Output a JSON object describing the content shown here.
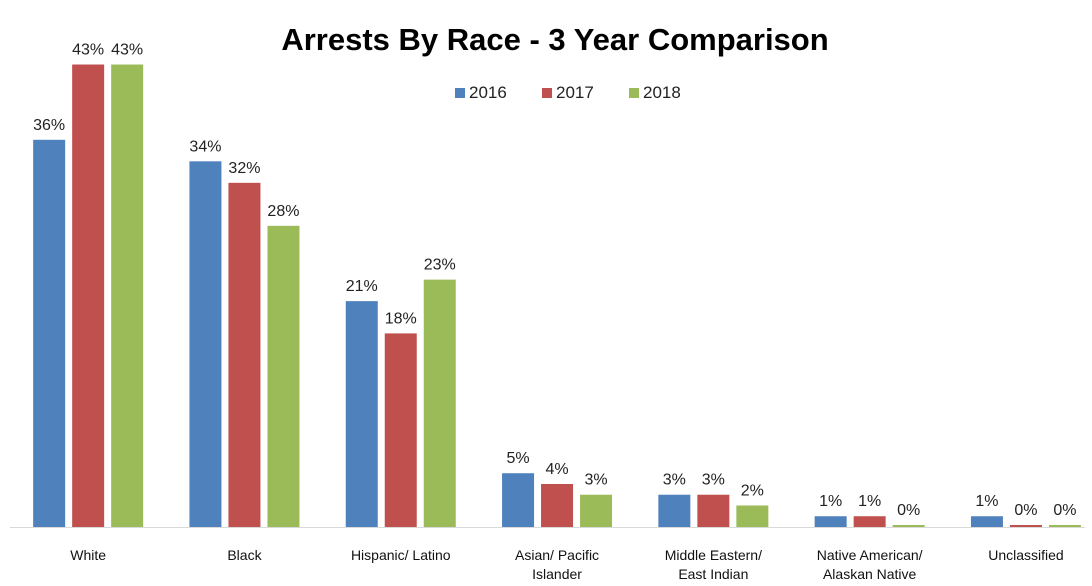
{
  "chart_data": {
    "type": "bar",
    "title": "Arrests By Race - 3  Year Comparison",
    "categories": [
      [
        "White"
      ],
      [
        "Black"
      ],
      [
        "Hispanic/ Latino"
      ],
      [
        "Asian/ Pacific",
        "Islander"
      ],
      [
        "Middle Eastern/",
        "East Indian"
      ],
      [
        "Native American/",
        "Alaskan Native"
      ],
      [
        "Unclassified"
      ]
    ],
    "series": [
      {
        "name": "2016",
        "color": "#4F81BD",
        "values": [
          36,
          34,
          21,
          5,
          3,
          1,
          1
        ],
        "labels": [
          "36%",
          "34%",
          "21%",
          "5%",
          "3%",
          "1%",
          "1%"
        ]
      },
      {
        "name": "2017",
        "color": "#C0504D",
        "values": [
          43,
          32,
          18,
          4,
          3,
          1,
          0
        ],
        "labels": [
          "43%",
          "32%",
          "18%",
          "4%",
          "3%",
          "1%",
          "0%"
        ]
      },
      {
        "name": "2018",
        "color": "#9BBB59",
        "values": [
          43,
          28,
          23,
          3,
          2,
          0,
          0
        ],
        "labels": [
          "43%",
          "28%",
          "23%",
          "3%",
          "2%",
          "0%",
          "0%"
        ]
      }
    ],
    "ylim": [
      0,
      45
    ],
    "legend_position": "top-center",
    "grid": false
  }
}
